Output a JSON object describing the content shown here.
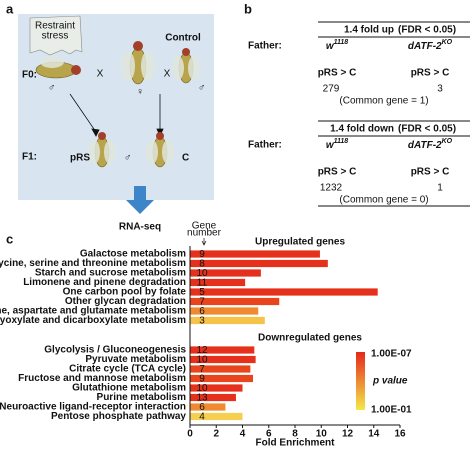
{
  "panel_a": {
    "label": "a",
    "stress_label": [
      "Restraint",
      "stress"
    ],
    "control_label": "Control",
    "f0": "F0:",
    "cross1": "X",
    "cross2": "X",
    "male1": "♂",
    "female": "♀",
    "male2": "♂",
    "f1": "F1:",
    "prs": "pRS",
    "male3": "♂",
    "c": "C",
    "rnaseq": "RNA-seq"
  },
  "panel_b": {
    "label": "b",
    "sections": [
      {
        "title": "1.4 fold up",
        "fdr": "(FDR < 0.05)",
        "father": "Father:",
        "col1": {
          "base": "w",
          "sup": "1118"
        },
        "col2": {
          "base": "dATF-2",
          "sup": "KO"
        },
        "cmp1": "pRS > C",
        "cmp2": "pRS > C",
        "n1": 279,
        "n2": 3,
        "common": "(Common gene = 1)"
      },
      {
        "title": "1.4 fold down",
        "fdr": "(FDR < 0.05)",
        "father": "Father:",
        "col1": {
          "base": "w",
          "sup": "1118"
        },
        "col2": {
          "base": "dATF-2",
          "sup": "KO"
        },
        "cmp1": "pRS > C",
        "cmp2": "pRS > C",
        "n1": 1232,
        "n2": 1,
        "common": "(Common gene = 0)"
      }
    ]
  },
  "chart_data": {
    "type": "bar",
    "orientation": "horizontal",
    "panel_label": "c",
    "xlabel": "Fold Enrichment",
    "gene_number_label": [
      "Gene",
      "number"
    ],
    "xlim": [
      0,
      16
    ],
    "xticks": [
      0,
      2,
      4,
      6,
      8,
      10,
      12,
      14,
      16
    ],
    "groups": [
      {
        "title": "Upregulated genes",
        "categories": [
          "Galactose metabolism",
          "Glycine, serine and threonine metabolism",
          "Starch and sucrose metabolism",
          "Limonene and pinene degradation",
          "One carbon pool by folate",
          "Other glycan degradation",
          "Alanine, aspartate and glutamate metabolism",
          "Glyoxylate and dicarboxylate metabolism"
        ],
        "values": [
          9.9,
          10.5,
          5.4,
          4.2,
          14.3,
          6.8,
          5.2,
          5.7
        ],
        "gene_numbers": [
          9,
          8,
          10,
          11,
          5,
          7,
          6,
          3
        ],
        "colors": [
          "#e5301c",
          "#e5301c",
          "#e5301c",
          "#e5301c",
          "#e5301c",
          "#e8451c",
          "#f08a30",
          "#f5c24a"
        ]
      },
      {
        "title": "Downregulated genes",
        "categories": [
          "Glycolysis / Gluconeogenesis",
          "Pyruvate metabolism",
          "Citrate cycle (TCA cycle)",
          "Fructose and mannose metabolism",
          "Glutathione metabolism",
          "Purine metabolism",
          "Neuroactive ligand-receptor interaction",
          "Pentose phosphate pathway"
        ],
        "values": [
          4.9,
          5.0,
          4.6,
          4.8,
          4.0,
          3.5,
          2.7,
          4.0
        ],
        "gene_numbers": [
          12,
          10,
          7,
          9,
          10,
          13,
          6,
          4
        ],
        "colors": [
          "#e5301c",
          "#e5301c",
          "#e8451c",
          "#e8451c",
          "#e5301c",
          "#e5301c",
          "#f08a30",
          "#f5d050"
        ]
      }
    ],
    "colorbar": {
      "label": "p value",
      "top": "1.00E-07",
      "bottom": "1.00E-01",
      "colors": [
        "#e5281c",
        "#f5e84a"
      ]
    }
  }
}
